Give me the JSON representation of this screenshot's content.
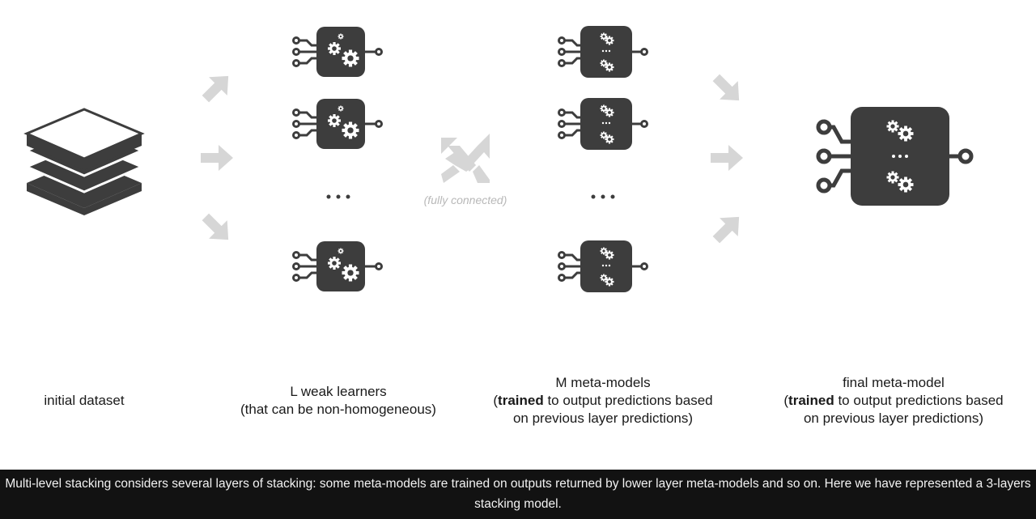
{
  "diagram": {
    "colors": {
      "node": "#3d3d3d",
      "arrow": "#d6d6d6",
      "gear": "#ffffff"
    },
    "ellipsis": "...",
    "fully_connected_note": "(fully connected)"
  },
  "labels": {
    "initial_dataset": "initial dataset",
    "weak_learners_line1": "L weak learners",
    "weak_learners_line2": "(that can be non-homogeneous)",
    "meta_models_line1": "M meta-models",
    "meta_models_bold": "trained",
    "meta_models_line2_rest": " to output predictions based",
    "meta_models_line3": "on previous layer predictions)",
    "final_line1": "final meta-model",
    "final_bold": "trained",
    "final_line2_rest": " to output predictions based",
    "final_line3": "on previous layer predictions)"
  },
  "caption": "Multi-level stacking considers several layers of stacking: some meta-models are trained on outputs returned by lower layer meta-models and so on. Here we have represented a 3-layers stacking model."
}
